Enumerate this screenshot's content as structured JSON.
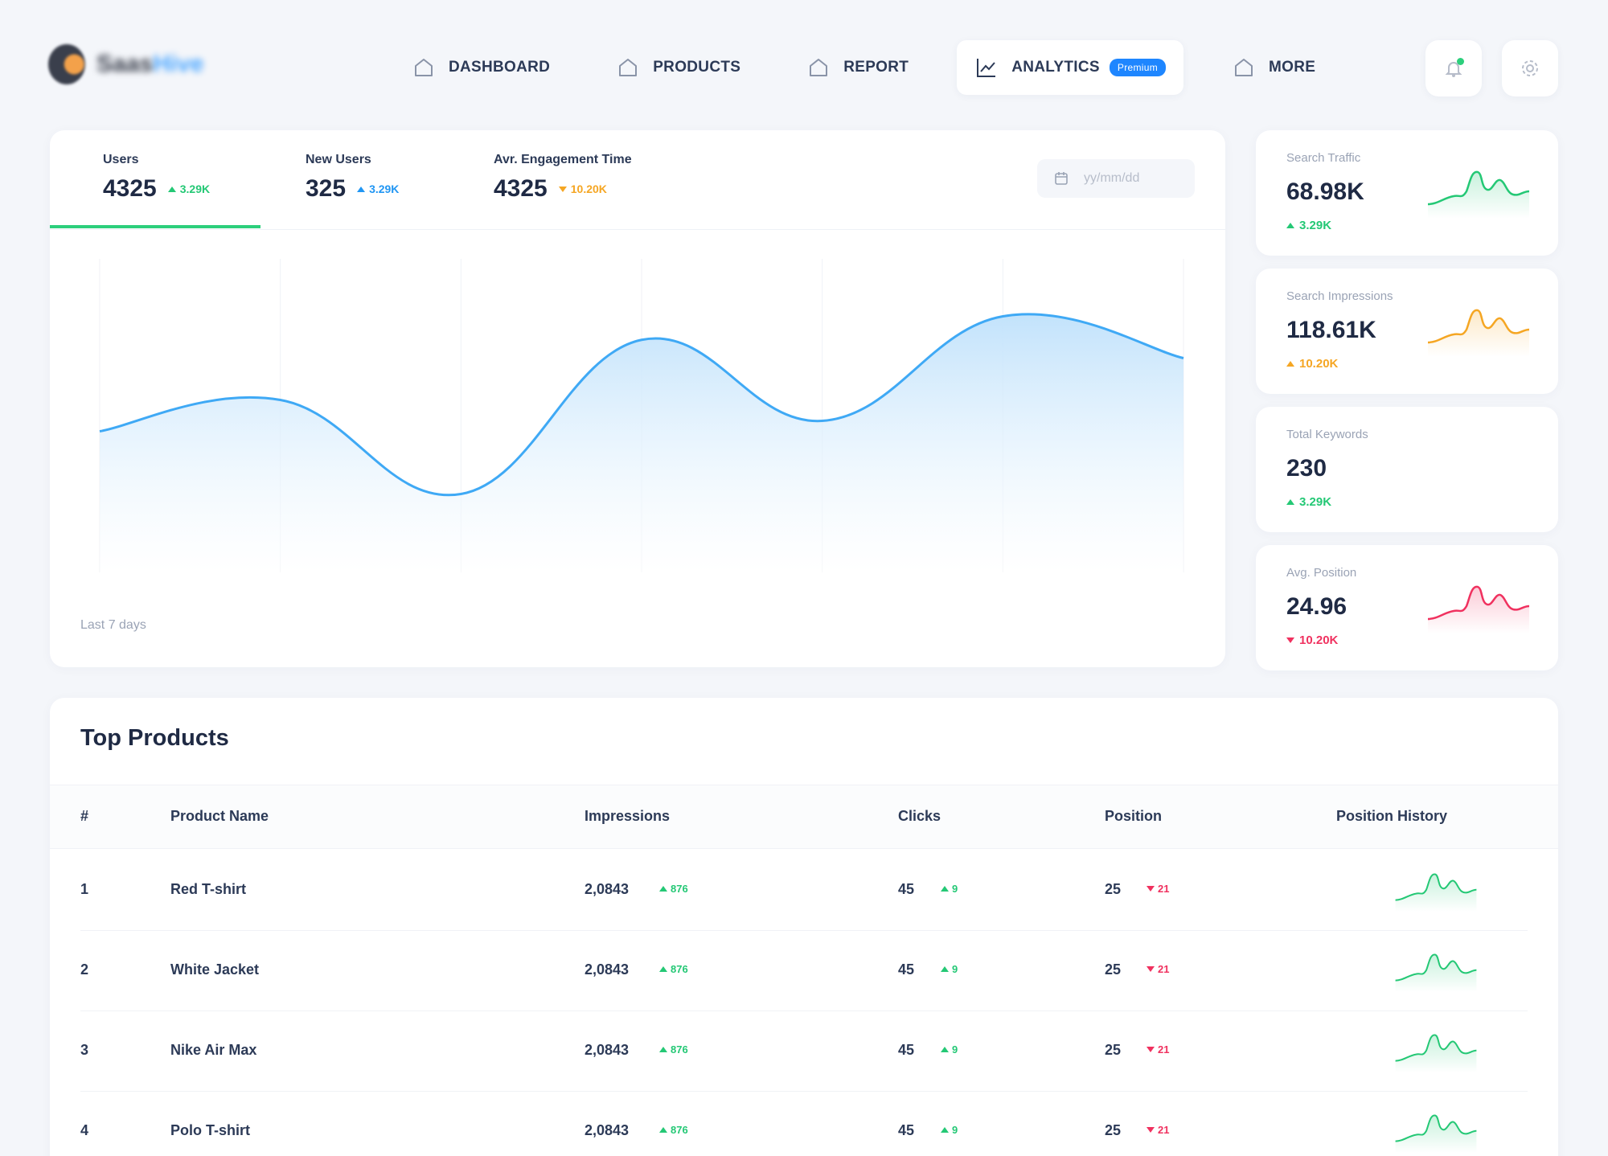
{
  "header": {
    "logo_icon": "logo-mark-icon",
    "logo_text_a": "Saas",
    "logo_text_b": "Hive",
    "nav": [
      {
        "label": "DASHBOARD",
        "icon": "home-icon"
      },
      {
        "label": "PRODUCTS",
        "icon": "home-icon"
      },
      {
        "label": "REPORT",
        "icon": "home-icon"
      },
      {
        "label": "ANALYTICS",
        "icon": "chart-line-icon",
        "badge": "Premium",
        "active": true
      },
      {
        "label": "MORE",
        "icon": "home-icon"
      }
    ],
    "bell_icon": "bell-icon",
    "settings_icon": "gear-icon"
  },
  "overview": {
    "tabs": [
      {
        "label": "Users",
        "value": "4325",
        "delta": "3.29K",
        "trend": "up",
        "color": "#24c875",
        "active": true
      },
      {
        "label": "New Users",
        "value": "325",
        "delta": "3.29K",
        "trend": "up",
        "color": "#2196f3"
      },
      {
        "label": "Avr. Engagement Time",
        "value": "4325",
        "delta": "10.20K",
        "trend": "down",
        "color": "#f5a623"
      }
    ],
    "date_placeholder": "yy/mm/dd",
    "calendar_icon": "calendar-icon",
    "footer": "Last 7 days"
  },
  "chart_data": {
    "type": "area",
    "x": [
      1,
      2,
      3,
      4,
      5,
      6,
      7
    ],
    "values": [
      54,
      66,
      30,
      89,
      58,
      98,
      82
    ],
    "ylim": [
      0,
      120
    ],
    "grid": true,
    "line_color": "#3fa9f5",
    "fill_color": "#bfe1fb",
    "title": "",
    "xlabel": "",
    "ylabel": ""
  },
  "stats": [
    {
      "label": "Search Traffic",
      "value": "68.98K",
      "delta": "3.29K",
      "trend": "up",
      "color": "#24c875"
    },
    {
      "label": "Search Impressions",
      "value": "118.61K",
      "delta": "10.20K",
      "trend": "up",
      "color": "#f5a623"
    },
    {
      "label": "Total Keywords",
      "value": "230",
      "delta": "3.29K",
      "trend": "up",
      "color": "#24c875"
    },
    {
      "label": "Avg. Position",
      "value": "24.96",
      "delta": "10.20K",
      "trend": "down",
      "color": "#f0315f"
    }
  ],
  "products": {
    "title": "Top Products",
    "columns": [
      "#",
      "Product Name",
      "Impressions",
      "Clicks",
      "Position",
      "Position History"
    ],
    "rows": [
      {
        "rank": "1",
        "name": "Red T-shirt",
        "impressions": "2,0843",
        "imp_delta": "876",
        "clicks": "45",
        "clicks_delta": "9",
        "position": "25",
        "pos_delta": "21"
      },
      {
        "rank": "2",
        "name": "White Jacket",
        "impressions": "2,0843",
        "imp_delta": "876",
        "clicks": "45",
        "clicks_delta": "9",
        "position": "25",
        "pos_delta": "21"
      },
      {
        "rank": "3",
        "name": "Nike Air Max",
        "impressions": "2,0843",
        "imp_delta": "876",
        "clicks": "45",
        "clicks_delta": "9",
        "position": "25",
        "pos_delta": "21"
      },
      {
        "rank": "4",
        "name": "Polo T-shirt",
        "impressions": "2,0843",
        "imp_delta": "876",
        "clicks": "45",
        "clicks_delta": "9",
        "position": "25",
        "pos_delta": "21"
      }
    ]
  }
}
